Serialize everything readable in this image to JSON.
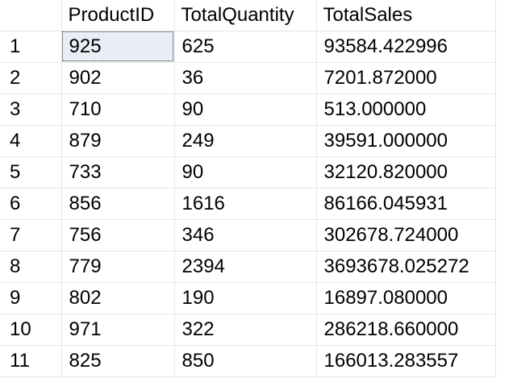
{
  "results_grid": {
    "columns": [
      "ProductID",
      "TotalQuantity",
      "TotalSales"
    ],
    "rows": [
      {
        "num": "1",
        "cells": [
          "925",
          "625",
          "93584.422996"
        ]
      },
      {
        "num": "2",
        "cells": [
          "902",
          "36",
          "7201.872000"
        ]
      },
      {
        "num": "3",
        "cells": [
          "710",
          "90",
          "513.000000"
        ]
      },
      {
        "num": "4",
        "cells": [
          "879",
          "249",
          "39591.000000"
        ]
      },
      {
        "num": "5",
        "cells": [
          "733",
          "90",
          "32120.820000"
        ]
      },
      {
        "num": "6",
        "cells": [
          "856",
          "1616",
          "86166.045931"
        ]
      },
      {
        "num": "7",
        "cells": [
          "756",
          "346",
          "302678.724000"
        ]
      },
      {
        "num": "8",
        "cells": [
          "779",
          "2394",
          "3693678.025272"
        ]
      },
      {
        "num": "9",
        "cells": [
          "802",
          "190",
          "16897.080000"
        ]
      },
      {
        "num": "10",
        "cells": [
          "971",
          "322",
          "286218.660000"
        ]
      },
      {
        "num": "11",
        "cells": [
          "825",
          "850",
          "166013.283557"
        ]
      }
    ],
    "selected_cell": {
      "row": 1,
      "column": "ProductID"
    }
  }
}
